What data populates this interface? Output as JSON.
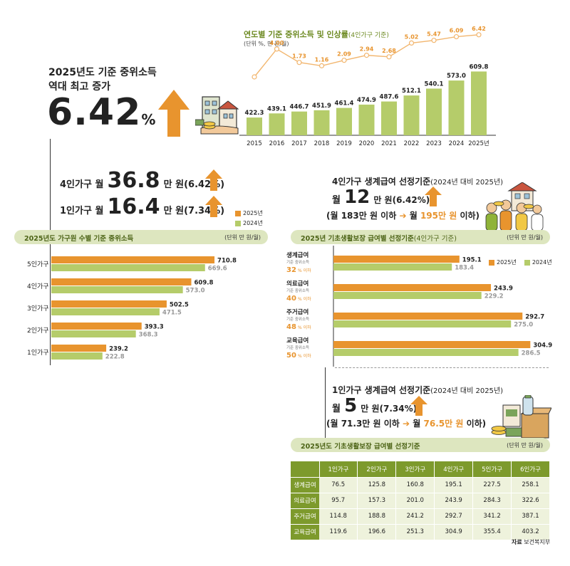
{
  "headline": {
    "line1": "2025년도 기준 중위소득",
    "line2": "역대 최고 증가",
    "big_value": "6.42",
    "big_unit": "%"
  },
  "colors": {
    "orange": "#e8942e",
    "green": "#7d9a2c",
    "light_green": "#b5cc6a",
    "band": "#dde6bf"
  },
  "annual_chart": {
    "title": "연도별 기준 중위소득 및 인상률",
    "title_suffix": "(4인가구 기준)",
    "unit": "(단위 %, 만 원/월)"
  },
  "household_summary": {
    "four_prefix": "4인가구 월",
    "four_value": "36.8",
    "four_suffix": "만 원(6.42%)",
    "one_prefix": "1인가구 월",
    "one_value": "16.4",
    "one_suffix": "만 원(7.34%)"
  },
  "household_band": {
    "label": "2025년도 가구원 수별 기준 중위소득",
    "unit": "(단위 만 원/월)"
  },
  "livelihood": {
    "title": "4인가구 생계급여 선정기준",
    "title_suffix": "(2024년 대비 2025년)",
    "prefix": "월",
    "value": "12",
    "suffix": "만 원(6.42%)",
    "line2_a": "(월 183만 원 이하",
    "line2_b": "월",
    "line2_c": "195만 원",
    "line2_d": "이하)"
  },
  "benefit_band": {
    "label": "2025년 기초생활보장 급여별 선정기준",
    "label_suffix": "(4인가구 기준)",
    "unit": "(단위 만 원/월)"
  },
  "single": {
    "title": "1인가구 생계급여 선정기준",
    "title_suffix": "(2024년 대비 2025년)",
    "prefix": "월",
    "value": "5",
    "suffix": "만 원(7.34%)",
    "line2_a": "(월 71.3만 원 이하",
    "line2_b": "월",
    "line2_c": "76.5만 원",
    "line2_d": "이하)"
  },
  "table_band": {
    "label": "2025년도 기초생활보장 급여별 선정기준",
    "unit": "(단위 만 원/월)"
  },
  "source": {
    "label": "자료",
    "name": "보건복지부"
  },
  "chart_data": [
    {
      "type": "bar",
      "title": "연도별 기준 중위소득 및 인상률(4인가구 기준)",
      "categories": [
        "2015",
        "2016",
        "2017",
        "2018",
        "2019",
        "2020",
        "2021",
        "2022",
        "2023",
        "2024",
        "2025년"
      ],
      "series": [
        {
          "name": "기준 중위소득",
          "values": [
            422.3,
            439.1,
            446.7,
            451.9,
            461.4,
            474.9,
            487.6,
            512.1,
            540.1,
            573.0,
            609.8
          ]
        },
        {
          "name": "인상률",
          "type": "line",
          "values": [
            null,
            4.0,
            1.73,
            1.16,
            2.09,
            2.94,
            2.68,
            5.02,
            5.47,
            6.09,
            6.42
          ]
        }
      ],
      "value_labels": [
        "422.3",
        "439.1",
        "446.7",
        "451.9",
        "461.4",
        "474.9",
        "487.6",
        "512.1",
        "540.1",
        "573.0",
        "609.8"
      ],
      "rate_labels": [
        "",
        "4.00",
        "1.73",
        "1.16",
        "2.09",
        "2.94",
        "2.68",
        "5.02",
        "5.47",
        "6.09",
        "6.42"
      ],
      "ylim": [
        350,
        640
      ],
      "rate_ylim": [
        0,
        7
      ]
    },
    {
      "type": "bar",
      "title": "2025년도 가구원 수별 기준 중위소득",
      "orientation": "horizontal",
      "categories": [
        "5인가구",
        "4인가구",
        "3인가구",
        "2인가구",
        "1인가구"
      ],
      "legend": [
        "2025년",
        "2024년"
      ],
      "series": [
        {
          "name": "2025년",
          "values": [
            710.8,
            609.8,
            502.5,
            393.3,
            239.2
          ]
        },
        {
          "name": "2024년",
          "values": [
            669.6,
            573.0,
            471.5,
            368.3,
            222.8
          ]
        }
      ],
      "labels_2025": [
        "710.8",
        "609.8",
        "502.5",
        "393.3",
        "239.2"
      ],
      "labels_2024": [
        "669.6",
        "573.0",
        "471.5",
        "368.3",
        "222.8"
      ],
      "xlim": [
        0,
        720
      ]
    },
    {
      "type": "bar",
      "title": "2025년 기초생활보장 급여별 선정기준(4인가구 기준)",
      "orientation": "horizontal",
      "legend": [
        "2025년",
        "2024년"
      ],
      "categories": [
        {
          "name": "생계급여",
          "sub": "기준 중위소득",
          "pct": "32",
          "pct_unit": "% 이하"
        },
        {
          "name": "의료급여",
          "sub": "기준 중위소득",
          "pct": "40",
          "pct_unit": "% 이하"
        },
        {
          "name": "주거급여",
          "sub": "기준 중위소득",
          "pct": "48",
          "pct_unit": "% 이하"
        },
        {
          "name": "교육급여",
          "sub": "기준 중위소득",
          "pct": "50",
          "pct_unit": "% 이하"
        }
      ],
      "series": [
        {
          "name": "2025년",
          "values": [
            195.1,
            243.9,
            292.7,
            304.9
          ]
        },
        {
          "name": "2024년",
          "values": [
            183.4,
            229.2,
            275.0,
            286.5
          ]
        }
      ],
      "labels_2025": [
        "195.1",
        "243.9",
        "292.7",
        "304.9"
      ],
      "labels_2024": [
        "183.4",
        "229.2",
        "275.0",
        "286.5"
      ],
      "xlim": [
        0,
        320
      ]
    },
    {
      "type": "table",
      "title": "2025년도 기초생활보장 급여별 선정기준",
      "columns": [
        "",
        "1인가구",
        "2인가구",
        "3인가구",
        "4인가구",
        "5인가구",
        "6인가구"
      ],
      "rows": [
        {
          "name": "생계급여",
          "values": [
            "76.5",
            "125.8",
            "160.8",
            "195.1",
            "227.5",
            "258.1"
          ]
        },
        {
          "name": "의료급여",
          "values": [
            "95.7",
            "157.3",
            "201.0",
            "243.9",
            "284.3",
            "322.6"
          ]
        },
        {
          "name": "주거급여",
          "values": [
            "114.8",
            "188.8",
            "241.2",
            "292.7",
            "341.2",
            "387.1"
          ]
        },
        {
          "name": "교육급여",
          "values": [
            "119.6",
            "196.6",
            "251.3",
            "304.9",
            "355.4",
            "403.2"
          ]
        }
      ]
    }
  ]
}
